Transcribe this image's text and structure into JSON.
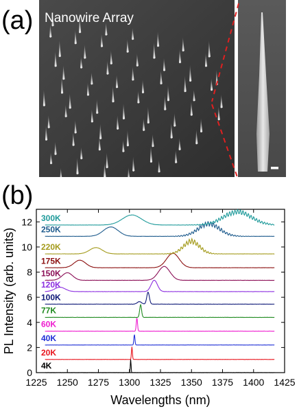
{
  "panel_a": {
    "label": "(a)",
    "image_title": "Nanowire Array"
  },
  "panel_b": {
    "label": "(b)"
  },
  "chart_data": {
    "type": "line",
    "xlabel": "Wavelengths (nm)",
    "ylabel": "PL Intensity (arb. units)",
    "xlim": [
      1225,
      1425
    ],
    "ylim": [
      0,
      13
    ],
    "xticks": [
      "1225",
      "1250",
      "1275",
      "1300",
      "1325",
      "1350",
      "1375",
      "1400",
      "1425"
    ],
    "yticks": [
      "0",
      "2",
      "4",
      "6",
      "8",
      "10",
      "12"
    ],
    "series": [
      {
        "name": "4K",
        "color": "#000000",
        "offset": 0.0,
        "peaks": [
          {
            "center": 1301,
            "fwhm": 0.7,
            "height": 1.1
          }
        ]
      },
      {
        "name": "20K",
        "color": "#e8141c",
        "offset": 1.05,
        "peaks": [
          {
            "center": 1302,
            "fwhm": 0.9,
            "height": 1.0
          }
        ]
      },
      {
        "name": "40K",
        "color": "#1f2fd6",
        "offset": 2.2,
        "peaks": [
          {
            "center": 1304,
            "fwhm": 1.0,
            "height": 0.85
          }
        ]
      },
      {
        "name": "60K",
        "color": "#ee1ccf",
        "offset": 3.3,
        "peaks": [
          {
            "center": 1306,
            "fwhm": 1.2,
            "height": 1.05
          }
        ]
      },
      {
        "name": "77K",
        "color": "#1f8a1f",
        "offset": 4.4,
        "peaks": [
          {
            "center": 1309,
            "fwhm": 1.8,
            "height": 1.0
          }
        ]
      },
      {
        "name": "100K",
        "color": "#0d1877",
        "offset": 5.45,
        "peaks": [
          {
            "center": 1315,
            "fwhm": 2.5,
            "height": 0.95
          },
          {
            "center": 1308,
            "fwhm": 4,
            "height": 0.2
          }
        ]
      },
      {
        "name": "120K",
        "color": "#8c2ee0",
        "offset": 6.45,
        "peaks": [
          {
            "center": 1320,
            "fwhm": 6,
            "height": 0.9
          },
          {
            "center": 1244,
            "fwhm": 10,
            "height": 0.35
          }
        ]
      },
      {
        "name": "150K",
        "color": "#8a0d55",
        "offset": 7.35,
        "peaks": [
          {
            "center": 1328,
            "fwhm": 11,
            "height": 1.1
          },
          {
            "center": 1250,
            "fwhm": 10,
            "height": 0.6
          }
        ]
      },
      {
        "name": "175K",
        "color": "#8b0e0e",
        "offset": 8.35,
        "peaks": [
          {
            "center": 1335,
            "fwhm": 12,
            "height": 1.15
          },
          {
            "center": 1260,
            "fwhm": 11,
            "height": 0.6
          }
        ]
      },
      {
        "name": "220K",
        "color": "#a39a1a",
        "offset": 9.45,
        "peaks": [
          {
            "center": 1350,
            "fwhm": 15,
            "height": 1.0
          },
          {
            "center": 1273,
            "fwhm": 12,
            "height": 0.5
          }
        ]
      },
      {
        "name": "250K",
        "color": "#1c5a8c",
        "offset": 10.85,
        "peaks": [
          {
            "center": 1364,
            "fwhm": 20,
            "height": 1.0
          },
          {
            "center": 1285,
            "fwhm": 14,
            "height": 0.75
          }
        ]
      },
      {
        "name": "300K",
        "color": "#1e9a9a",
        "offset": 11.75,
        "peaks": [
          {
            "center": 1387,
            "fwhm": 26,
            "height": 1.05
          },
          {
            "center": 1302,
            "fwhm": 18,
            "height": 0.8
          }
        ]
      }
    ]
  }
}
